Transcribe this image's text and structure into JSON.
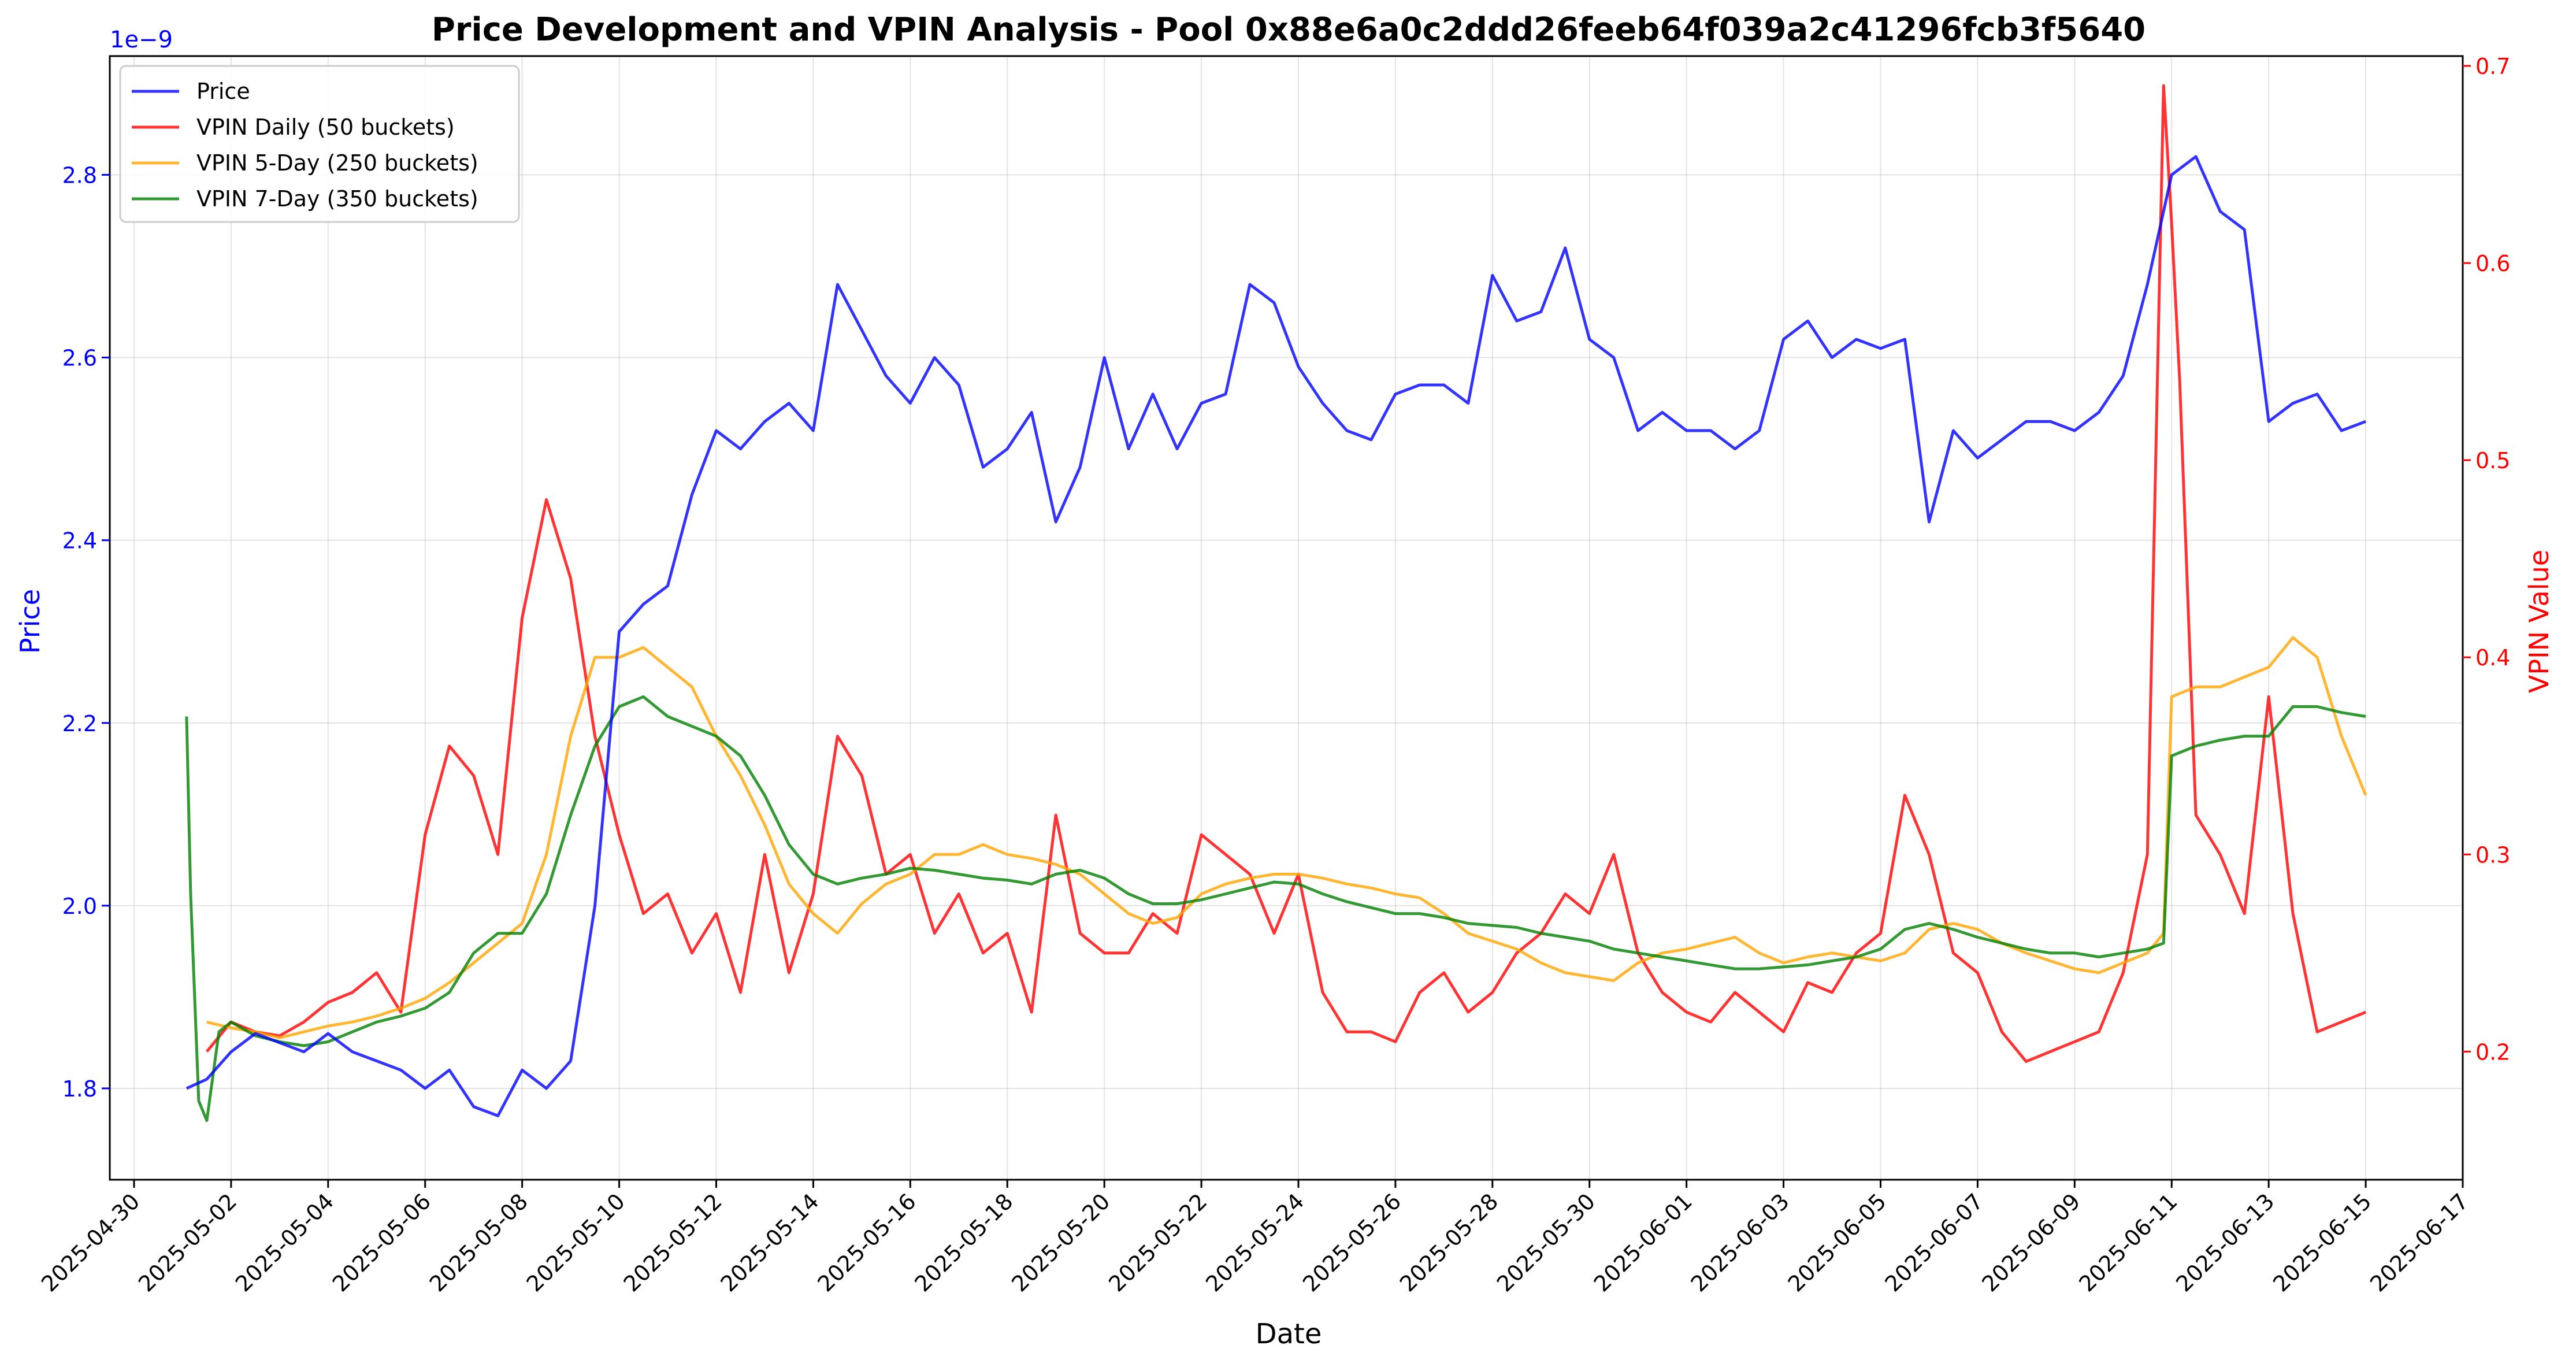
{
  "chart_data": {
    "type": "line",
    "title": "Price Development and VPIN Analysis - Pool 0x88e6a0c2ddd26feeb64f039a2c41296fcb3f5640",
    "xlabel": "Date",
    "ylabel_left": "Price",
    "ylabel_right": "VPIN Value",
    "left_axis_multiplier": "1e−9",
    "x_range": [
      "2025-04-29T12:00",
      "2025-06-17T00:00"
    ],
    "ylim_left": [
      1.7,
      2.93
    ],
    "ylim_right": [
      0.135,
      0.705
    ],
    "x_ticks": [
      "2025-04-30",
      "2025-05-02",
      "2025-05-04",
      "2025-05-06",
      "2025-05-08",
      "2025-05-10",
      "2025-05-12",
      "2025-05-14",
      "2025-05-16",
      "2025-05-18",
      "2025-05-20",
      "2025-05-22",
      "2025-05-24",
      "2025-05-26",
      "2025-05-28",
      "2025-05-30",
      "2025-06-01",
      "2025-06-03",
      "2025-06-05",
      "2025-06-07",
      "2025-06-09",
      "2025-06-11",
      "2025-06-13",
      "2025-06-15",
      "2025-06-17"
    ],
    "y_ticks_left": [
      "1.8",
      "2.0",
      "2.2",
      "2.4",
      "2.6",
      "2.8"
    ],
    "y_ticks_right": [
      "0.2",
      "0.3",
      "0.4",
      "0.5",
      "0.6",
      "0.7"
    ],
    "grid": true,
    "legend_position": "top-left",
    "series": [
      {
        "name": "Price",
        "axis": "left",
        "color": "#0000ff",
        "x": [
          "2025-05-01T02:00",
          "2025-05-01T12:00",
          "2025-05-02T00:00",
          "2025-05-02T12:00",
          "2025-05-03T00:00",
          "2025-05-03T12:00",
          "2025-05-04T00:00",
          "2025-05-04T12:00",
          "2025-05-05T00:00",
          "2025-05-05T12:00",
          "2025-05-06T00:00",
          "2025-05-06T12:00",
          "2025-05-07T00:00",
          "2025-05-07T12:00",
          "2025-05-08T00:00",
          "2025-05-08T12:00",
          "2025-05-09T00:00",
          "2025-05-09T12:00",
          "2025-05-10T00:00",
          "2025-05-10T12:00",
          "2025-05-11T00:00",
          "2025-05-11T12:00",
          "2025-05-12T00:00",
          "2025-05-12T12:00",
          "2025-05-13T00:00",
          "2025-05-13T12:00",
          "2025-05-14T00:00",
          "2025-05-14T12:00",
          "2025-05-15T00:00",
          "2025-05-15T12:00",
          "2025-05-16T00:00",
          "2025-05-16T12:00",
          "2025-05-17T00:00",
          "2025-05-17T12:00",
          "2025-05-18T00:00",
          "2025-05-18T12:00",
          "2025-05-19T00:00",
          "2025-05-19T12:00",
          "2025-05-20T00:00",
          "2025-05-20T12:00",
          "2025-05-21T00:00",
          "2025-05-21T12:00",
          "2025-05-22T00:00",
          "2025-05-22T12:00",
          "2025-05-23T00:00",
          "2025-05-23T12:00",
          "2025-05-24T00:00",
          "2025-05-24T12:00",
          "2025-05-25T00:00",
          "2025-05-25T12:00",
          "2025-05-26T00:00",
          "2025-05-26T12:00",
          "2025-05-27T00:00",
          "2025-05-27T12:00",
          "2025-05-28T00:00",
          "2025-05-28T12:00",
          "2025-05-29T00:00",
          "2025-05-29T12:00",
          "2025-05-30T00:00",
          "2025-05-30T12:00",
          "2025-05-31T00:00",
          "2025-05-31T12:00",
          "2025-06-01T00:00",
          "2025-06-01T12:00",
          "2025-06-02T00:00",
          "2025-06-02T12:00",
          "2025-06-03T00:00",
          "2025-06-03T12:00",
          "2025-06-04T00:00",
          "2025-06-04T12:00",
          "2025-06-05T00:00",
          "2025-06-05T12:00",
          "2025-06-06T00:00",
          "2025-06-06T12:00",
          "2025-06-07T00:00",
          "2025-06-07T12:00",
          "2025-06-08T00:00",
          "2025-06-08T12:00",
          "2025-06-09T00:00",
          "2025-06-09T12:00",
          "2025-06-10T00:00",
          "2025-06-10T12:00",
          "2025-06-11T00:00",
          "2025-06-11T12:00",
          "2025-06-12T00:00",
          "2025-06-12T12:00",
          "2025-06-13T00:00",
          "2025-06-13T12:00",
          "2025-06-14T00:00",
          "2025-06-14T12:00",
          "2025-06-15T00:00"
        ],
        "values": [
          1.8,
          1.81,
          1.84,
          1.86,
          1.85,
          1.84,
          1.86,
          1.84,
          1.83,
          1.82,
          1.8,
          1.82,
          1.78,
          1.77,
          1.82,
          1.8,
          1.83,
          2.0,
          2.3,
          2.33,
          2.35,
          2.45,
          2.52,
          2.5,
          2.53,
          2.55,
          2.52,
          2.68,
          2.63,
          2.58,
          2.55,
          2.6,
          2.57,
          2.48,
          2.5,
          2.54,
          2.42,
          2.48,
          2.6,
          2.5,
          2.56,
          2.5,
          2.55,
          2.56,
          2.68,
          2.66,
          2.59,
          2.55,
          2.52,
          2.51,
          2.56,
          2.57,
          2.57,
          2.55,
          2.69,
          2.64,
          2.65,
          2.72,
          2.62,
          2.6,
          2.52,
          2.54,
          2.52,
          2.52,
          2.5,
          2.52,
          2.62,
          2.64,
          2.6,
          2.62,
          2.61,
          2.62,
          2.42,
          2.52,
          2.49,
          2.51,
          2.53,
          2.53,
          2.52,
          2.54,
          2.58,
          2.68,
          2.8,
          2.82,
          2.76,
          2.74,
          2.53,
          2.55,
          2.56,
          2.52,
          2.53
        ]
      },
      {
        "name": "VPIN Daily (50 buckets)",
        "axis": "right",
        "color": "#ff0000",
        "x": [
          "2025-05-01T12:00",
          "2025-05-02T00:00",
          "2025-05-02T12:00",
          "2025-05-03T00:00",
          "2025-05-03T12:00",
          "2025-05-04T00:00",
          "2025-05-04T12:00",
          "2025-05-05T00:00",
          "2025-05-05T12:00",
          "2025-05-06T00:00",
          "2025-05-06T12:00",
          "2025-05-07T00:00",
          "2025-05-07T12:00",
          "2025-05-08T00:00",
          "2025-05-08T12:00",
          "2025-05-09T00:00",
          "2025-05-09T12:00",
          "2025-05-10T00:00",
          "2025-05-10T12:00",
          "2025-05-11T00:00",
          "2025-05-11T12:00",
          "2025-05-12T00:00",
          "2025-05-12T12:00",
          "2025-05-13T00:00",
          "2025-05-13T12:00",
          "2025-05-14T00:00",
          "2025-05-14T12:00",
          "2025-05-15T00:00",
          "2025-05-15T12:00",
          "2025-05-16T00:00",
          "2025-05-16T12:00",
          "2025-05-17T00:00",
          "2025-05-17T12:00",
          "2025-05-18T00:00",
          "2025-05-18T12:00",
          "2025-05-19T00:00",
          "2025-05-19T12:00",
          "2025-05-20T00:00",
          "2025-05-20T12:00",
          "2025-05-21T00:00",
          "2025-05-21T12:00",
          "2025-05-22T00:00",
          "2025-05-22T12:00",
          "2025-05-23T00:00",
          "2025-05-23T12:00",
          "2025-05-24T00:00",
          "2025-05-24T12:00",
          "2025-05-25T00:00",
          "2025-05-25T12:00",
          "2025-05-26T00:00",
          "2025-05-26T12:00",
          "2025-05-27T00:00",
          "2025-05-27T12:00",
          "2025-05-28T00:00",
          "2025-05-28T12:00",
          "2025-05-29T00:00",
          "2025-05-29T12:00",
          "2025-05-30T00:00",
          "2025-05-30T12:00",
          "2025-05-31T00:00",
          "2025-05-31T12:00",
          "2025-06-01T00:00",
          "2025-06-01T12:00",
          "2025-06-02T00:00",
          "2025-06-02T12:00",
          "2025-06-03T00:00",
          "2025-06-03T12:00",
          "2025-06-04T00:00",
          "2025-06-04T12:00",
          "2025-06-05T00:00",
          "2025-06-05T12:00",
          "2025-06-06T00:00",
          "2025-06-06T12:00",
          "2025-06-07T00:00",
          "2025-06-07T12:00",
          "2025-06-08T00:00",
          "2025-06-08T12:00",
          "2025-06-09T00:00",
          "2025-06-09T12:00",
          "2025-06-10T00:00",
          "2025-06-10T12:00",
          "2025-06-10T20:00",
          "2025-06-11T00:00",
          "2025-06-11T04:00",
          "2025-06-11T12:00",
          "2025-06-12T00:00",
          "2025-06-12T12:00",
          "2025-06-13T00:00",
          "2025-06-13T12:00",
          "2025-06-14T00:00",
          "2025-06-14T12:00",
          "2025-06-15T00:00"
        ],
        "values": [
          0.2,
          0.215,
          0.21,
          0.208,
          0.215,
          0.225,
          0.23,
          0.24,
          0.22,
          0.31,
          0.355,
          0.34,
          0.3,
          0.42,
          0.48,
          0.44,
          0.36,
          0.31,
          0.27,
          0.28,
          0.25,
          0.27,
          0.23,
          0.3,
          0.24,
          0.28,
          0.36,
          0.34,
          0.29,
          0.3,
          0.26,
          0.28,
          0.25,
          0.26,
          0.22,
          0.32,
          0.26,
          0.25,
          0.25,
          0.27,
          0.26,
          0.31,
          0.3,
          0.29,
          0.26,
          0.29,
          0.23,
          0.21,
          0.21,
          0.205,
          0.23,
          0.24,
          0.22,
          0.23,
          0.25,
          0.26,
          0.28,
          0.27,
          0.3,
          0.25,
          0.23,
          0.22,
          0.215,
          0.23,
          0.22,
          0.21,
          0.235,
          0.23,
          0.25,
          0.26,
          0.33,
          0.3,
          0.25,
          0.24,
          0.21,
          0.195,
          0.2,
          0.205,
          0.21,
          0.24,
          0.3,
          0.69,
          0.62,
          0.54,
          0.32,
          0.3,
          0.27,
          0.38,
          0.27,
          0.21,
          0.215,
          0.22
        ]
      },
      {
        "name": "VPIN 5-Day (250 buckets)",
        "axis": "right",
        "color": "#ffa500",
        "x": [
          "2025-05-01T12:00",
          "2025-05-02T00:00",
          "2025-05-02T12:00",
          "2025-05-03T00:00",
          "2025-05-03T12:00",
          "2025-05-04T00:00",
          "2025-05-04T12:00",
          "2025-05-05T00:00",
          "2025-05-05T12:00",
          "2025-05-06T00:00",
          "2025-05-06T12:00",
          "2025-05-07T00:00",
          "2025-05-07T12:00",
          "2025-05-08T00:00",
          "2025-05-08T12:00",
          "2025-05-09T00:00",
          "2025-05-09T12:00",
          "2025-05-10T00:00",
          "2025-05-10T12:00",
          "2025-05-11T00:00",
          "2025-05-11T12:00",
          "2025-05-12T00:00",
          "2025-05-12T12:00",
          "2025-05-13T00:00",
          "2025-05-13T12:00",
          "2025-05-14T00:00",
          "2025-05-14T12:00",
          "2025-05-15T00:00",
          "2025-05-15T12:00",
          "2025-05-16T00:00",
          "2025-05-16T12:00",
          "2025-05-17T00:00",
          "2025-05-17T12:00",
          "2025-05-18T00:00",
          "2025-05-18T12:00",
          "2025-05-19T00:00",
          "2025-05-19T12:00",
          "2025-05-20T00:00",
          "2025-05-20T12:00",
          "2025-05-21T00:00",
          "2025-05-21T12:00",
          "2025-05-22T00:00",
          "2025-05-22T12:00",
          "2025-05-23T00:00",
          "2025-05-23T12:00",
          "2025-05-24T00:00",
          "2025-05-24T12:00",
          "2025-05-25T00:00",
          "2025-05-25T12:00",
          "2025-05-26T00:00",
          "2025-05-26T12:00",
          "2025-05-27T00:00",
          "2025-05-27T12:00",
          "2025-05-28T00:00",
          "2025-05-28T12:00",
          "2025-05-29T00:00",
          "2025-05-29T12:00",
          "2025-05-30T00:00",
          "2025-05-30T12:00",
          "2025-05-31T00:00",
          "2025-05-31T12:00",
          "2025-06-01T00:00",
          "2025-06-01T12:00",
          "2025-06-02T00:00",
          "2025-06-02T12:00",
          "2025-06-03T00:00",
          "2025-06-03T12:00",
          "2025-06-04T00:00",
          "2025-06-04T12:00",
          "2025-06-05T00:00",
          "2025-06-05T12:00",
          "2025-06-06T00:00",
          "2025-06-06T12:00",
          "2025-06-07T00:00",
          "2025-06-07T12:00",
          "2025-06-08T00:00",
          "2025-06-08T12:00",
          "2025-06-09T00:00",
          "2025-06-09T12:00",
          "2025-06-10T00:00",
          "2025-06-10T12:00",
          "2025-06-10T20:00",
          "2025-06-11T00:00",
          "2025-06-11T12:00",
          "2025-06-12T00:00",
          "2025-06-12T12:00",
          "2025-06-13T00:00",
          "2025-06-13T12:00",
          "2025-06-14T00:00",
          "2025-06-14T12:00",
          "2025-06-15T00:00"
        ],
        "values": [
          0.215,
          0.212,
          0.21,
          0.207,
          0.21,
          0.213,
          0.215,
          0.218,
          0.222,
          0.227,
          0.235,
          0.245,
          0.255,
          0.265,
          0.3,
          0.36,
          0.4,
          0.4,
          0.405,
          0.395,
          0.385,
          0.36,
          0.34,
          0.315,
          0.285,
          0.27,
          0.26,
          0.275,
          0.285,
          0.29,
          0.3,
          0.3,
          0.305,
          0.3,
          0.298,
          0.295,
          0.29,
          0.28,
          0.27,
          0.265,
          0.268,
          0.28,
          0.285,
          0.288,
          0.29,
          0.29,
          0.288,
          0.285,
          0.283,
          0.28,
          0.278,
          0.27,
          0.26,
          0.256,
          0.252,
          0.245,
          0.24,
          0.238,
          0.236,
          0.245,
          0.25,
          0.252,
          0.255,
          0.258,
          0.25,
          0.245,
          0.248,
          0.25,
          0.248,
          0.246,
          0.25,
          0.262,
          0.265,
          0.262,
          0.255,
          0.25,
          0.246,
          0.242,
          0.24,
          0.245,
          0.25,
          0.26,
          0.38,
          0.385,
          0.385,
          0.39,
          0.395,
          0.41,
          0.4,
          0.36,
          0.33
        ]
      },
      {
        "name": "VPIN 7-Day (350 buckets)",
        "axis": "right",
        "color": "#008000",
        "x": [
          "2025-05-01T02:00",
          "2025-05-01T04:00",
          "2025-05-01T08:00",
          "2025-05-01T12:00",
          "2025-05-01T18:00",
          "2025-05-02T00:00",
          "2025-05-02T12:00",
          "2025-05-03T00:00",
          "2025-05-03T12:00",
          "2025-05-04T00:00",
          "2025-05-04T12:00",
          "2025-05-05T00:00",
          "2025-05-05T12:00",
          "2025-05-06T00:00",
          "2025-05-06T12:00",
          "2025-05-07T00:00",
          "2025-05-07T12:00",
          "2025-05-08T00:00",
          "2025-05-08T12:00",
          "2025-05-09T00:00",
          "2025-05-09T12:00",
          "2025-05-10T00:00",
          "2025-05-10T12:00",
          "2025-05-11T00:00",
          "2025-05-11T12:00",
          "2025-05-12T00:00",
          "2025-05-12T12:00",
          "2025-05-13T00:00",
          "2025-05-13T12:00",
          "2025-05-14T00:00",
          "2025-05-14T12:00",
          "2025-05-15T00:00",
          "2025-05-15T12:00",
          "2025-05-16T00:00",
          "2025-05-16T12:00",
          "2025-05-17T00:00",
          "2025-05-17T12:00",
          "2025-05-18T00:00",
          "2025-05-18T12:00",
          "2025-05-19T00:00",
          "2025-05-19T12:00",
          "2025-05-20T00:00",
          "2025-05-20T12:00",
          "2025-05-21T00:00",
          "2025-05-21T12:00",
          "2025-05-22T00:00",
          "2025-05-22T12:00",
          "2025-05-23T00:00",
          "2025-05-23T12:00",
          "2025-05-24T00:00",
          "2025-05-24T12:00",
          "2025-05-25T00:00",
          "2025-05-25T12:00",
          "2025-05-26T00:00",
          "2025-05-26T12:00",
          "2025-05-27T00:00",
          "2025-05-27T12:00",
          "2025-05-28T00:00",
          "2025-05-28T12:00",
          "2025-05-29T00:00",
          "2025-05-29T12:00",
          "2025-05-30T00:00",
          "2025-05-30T12:00",
          "2025-05-31T00:00",
          "2025-05-31T12:00",
          "2025-06-01T00:00",
          "2025-06-01T12:00",
          "2025-06-02T00:00",
          "2025-06-02T12:00",
          "2025-06-03T00:00",
          "2025-06-03T12:00",
          "2025-06-04T00:00",
          "2025-06-04T12:00",
          "2025-06-05T00:00",
          "2025-06-05T12:00",
          "2025-06-06T00:00",
          "2025-06-06T12:00",
          "2025-06-07T00:00",
          "2025-06-07T12:00",
          "2025-06-08T00:00",
          "2025-06-08T12:00",
          "2025-06-09T00:00",
          "2025-06-09T12:00",
          "2025-06-10T00:00",
          "2025-06-10T12:00",
          "2025-06-10T20:00",
          "2025-06-11T00:00",
          "2025-06-11T12:00",
          "2025-06-12T00:00",
          "2025-06-12T12:00",
          "2025-06-13T00:00",
          "2025-06-13T12:00",
          "2025-06-14T00:00",
          "2025-06-14T12:00",
          "2025-06-15T00:00"
        ],
        "values": [
          0.37,
          0.28,
          0.175,
          0.165,
          0.21,
          0.215,
          0.208,
          0.205,
          0.203,
          0.205,
          0.21,
          0.215,
          0.218,
          0.222,
          0.23,
          0.25,
          0.26,
          0.26,
          0.28,
          0.32,
          0.355,
          0.375,
          0.38,
          0.37,
          0.365,
          0.36,
          0.35,
          0.33,
          0.305,
          0.29,
          0.285,
          0.288,
          0.29,
          0.293,
          0.292,
          0.29,
          0.288,
          0.287,
          0.285,
          0.29,
          0.292,
          0.288,
          0.28,
          0.275,
          0.275,
          0.277,
          0.28,
          0.283,
          0.286,
          0.285,
          0.28,
          0.276,
          0.273,
          0.27,
          0.27,
          0.268,
          0.265,
          0.264,
          0.263,
          0.26,
          0.258,
          0.256,
          0.252,
          0.25,
          0.248,
          0.246,
          0.244,
          0.242,
          0.242,
          0.243,
          0.244,
          0.246,
          0.248,
          0.252,
          0.262,
          0.265,
          0.262,
          0.258,
          0.255,
          0.252,
          0.25,
          0.25,
          0.248,
          0.25,
          0.252,
          0.255,
          0.35,
          0.355,
          0.358,
          0.36,
          0.36,
          0.375,
          0.375,
          0.372,
          0.37
        ]
      }
    ]
  }
}
